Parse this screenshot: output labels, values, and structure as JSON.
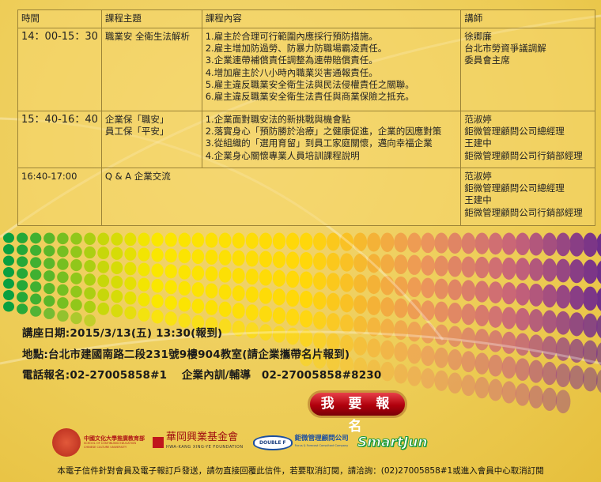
{
  "colors": {
    "background": "#edcc55",
    "button": "#b0000c",
    "dot_start": "#0aa040",
    "dot_mid": "#ffe000",
    "dot_end": "#6e2e8a"
  },
  "table": {
    "headers": [
      "時間",
      "課程主題",
      "課程內容",
      "講師"
    ],
    "rows": [
      {
        "time": "14：00-15：30",
        "topic": [
          "職業安 全衛生法解析"
        ],
        "content": [
          "1.雇主於合理可行範圍內應採行預防措施。",
          "2.雇主增加防過勞、防暴力防職場霸凌責任。",
          "3.企業連帶補償責任調整為連帶賠償責任。",
          "4.增加雇主於八小時內職業災害通報責任。",
          "5.雇主違反職業安全衛生法與民法侵權責任之關聯。",
          "6.雇主違反職業安全衛生法責任與商業保險之抵充。"
        ],
        "speaker": [
          "徐卿廉",
          "台北市勞資爭議調解",
          "委員會主席"
        ]
      },
      {
        "time": "15：40-16：40",
        "topic": [
          "企業保「職安」",
          "員工保「平安」"
        ],
        "content": [
          "1.企業面對職安法的新挑戰與機會點",
          "2.落實身心「預防勝於治療」之健康促進，企業的因應對策",
          "3.從組織的「選用育留」到員工家庭關懷，邁向幸福企業",
          "4.企業身心關懷專業人員培訓課程說明"
        ],
        "speaker": [
          "范淑婷",
          "鉅微管理顧問公司總經理",
          "王建中",
          "鉅微管理顧問公司行銷部經理"
        ]
      },
      {
        "time": "16:40-17:00",
        "topic": [
          "Q & A  企業交流"
        ],
        "content": [],
        "speaker": [
          "范淑婷",
          "鉅微管理顧問公司總經理",
          "王建中",
          "鉅微管理顧問公司行銷部經理"
        ]
      }
    ]
  },
  "info": {
    "date": "講座日期:2015/3/13(五) 13:30(報到)",
    "location": "地點:台北市建國南路二段231號9樓904教室(請企業攜帶名片報到)",
    "phone": "電話報名:02-27005858#1　 企業內訓/輔導　02-27005858#8230"
  },
  "signup_button": "我 要 報 名",
  "logos": {
    "pccu": {
      "name": "中國文化大學推廣教育部",
      "sub": "SCHOOL OF CONTINUING EDUCATION CHINESE CULTURE UNIVERSITY"
    },
    "hwakang": {
      "name": "華岡興業基金會",
      "sub": "HWA-KANG XING-YE FOUNDATION"
    },
    "doublef": {
      "mark": "DOUBLE F",
      "name": "鉅微管理顧問公司",
      "sub": "Focus & Forecast Consultant Company"
    },
    "smartjun": {
      "name": "SmartJun"
    }
  },
  "footer": "本電子信件針對會員及電子報訂戶發送，請勿直接回覆此信件，若要取消訂閱，請洽詢：(02)27005858#1或進入會員中心取消訂閱"
}
